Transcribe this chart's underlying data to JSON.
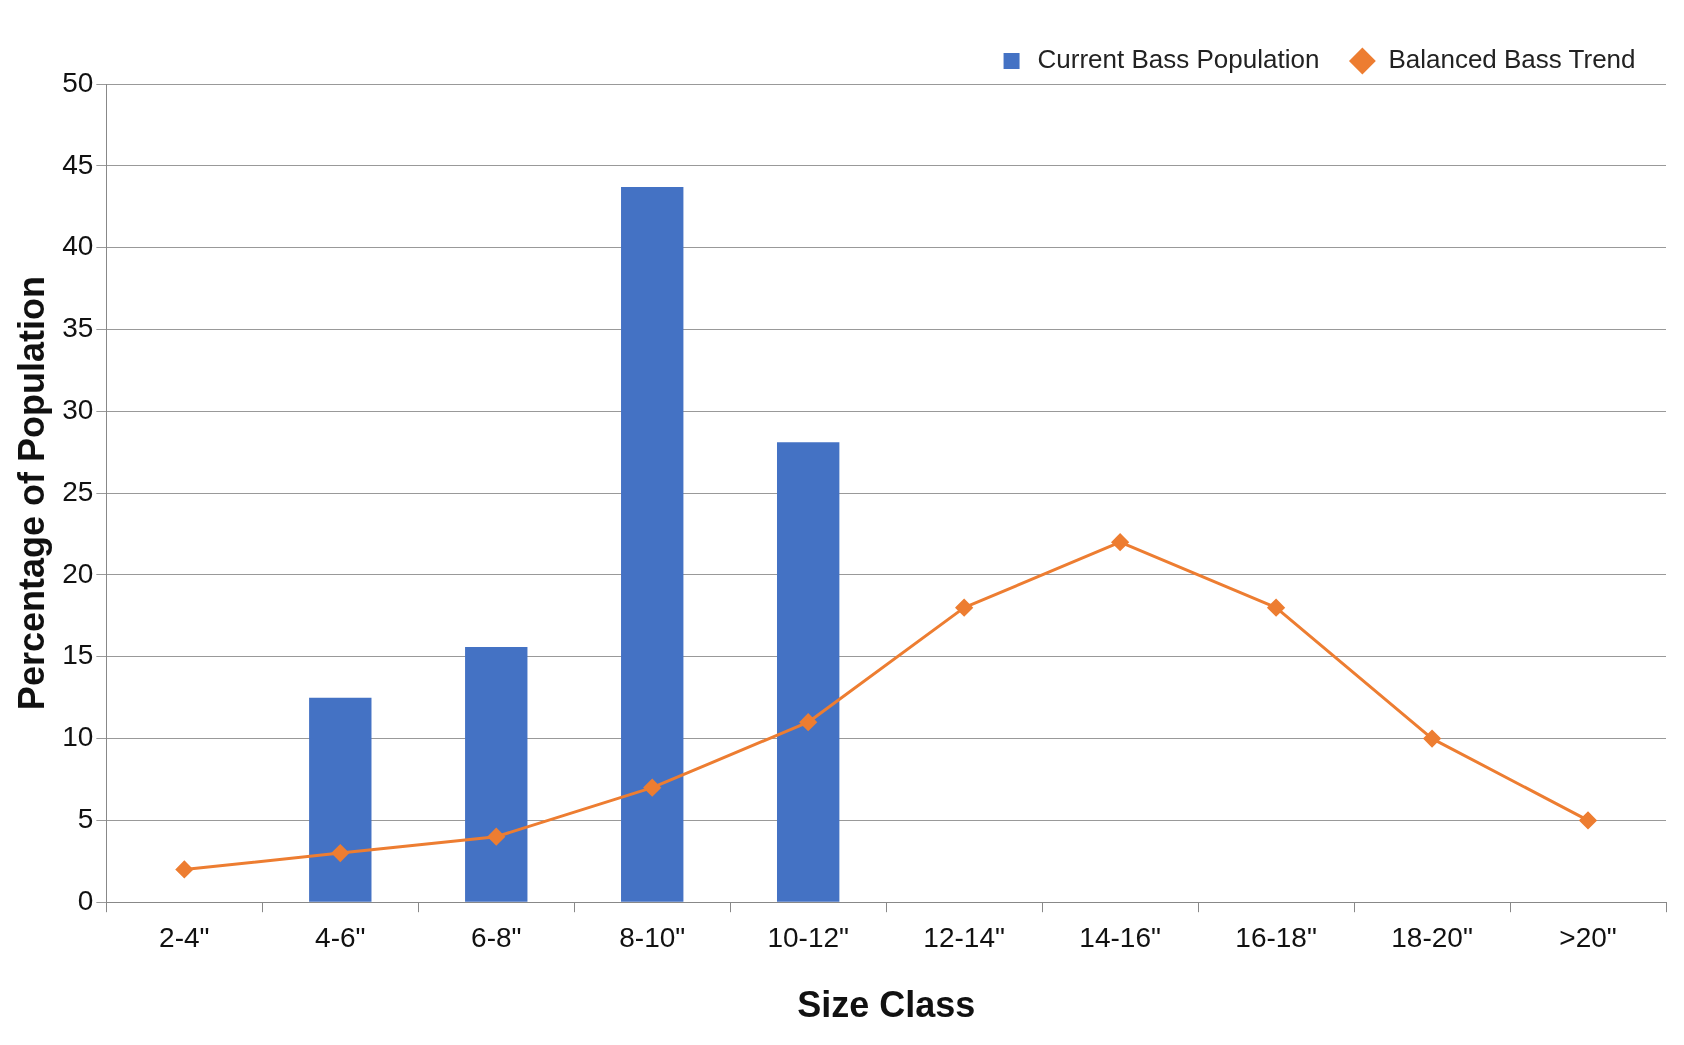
{
  "chart_data": {
    "type": "bar",
    "xlabel": "Size Class",
    "ylabel": "Percentage of Population",
    "categories": [
      "2-4\"",
      "4-6\"",
      "6-8\"",
      "8-10\"",
      "10-12\"",
      "12-14\"",
      "14-16\"",
      "16-18\"",
      "18-20\"",
      ">20\""
    ],
    "series": [
      {
        "name": "Current Bass Population",
        "color": "#4472c4",
        "values": [
          null,
          12.5,
          15.6,
          43.7,
          28.1,
          null,
          null,
          null,
          null,
          null
        ]
      },
      {
        "name": "Balanced Bass Trend",
        "type": "line",
        "color": "#ed7d31",
        "marker": "diamond",
        "line_style": "solid",
        "values": [
          2,
          3,
          4,
          7,
          11,
          18,
          22,
          18,
          10,
          5
        ]
      }
    ],
    "ylim": [
      0,
      50
    ],
    "yticks": [
      0,
      5,
      10,
      15,
      20,
      25,
      30,
      35,
      40,
      45,
      50
    ],
    "grid": "y",
    "legend": "top right"
  }
}
